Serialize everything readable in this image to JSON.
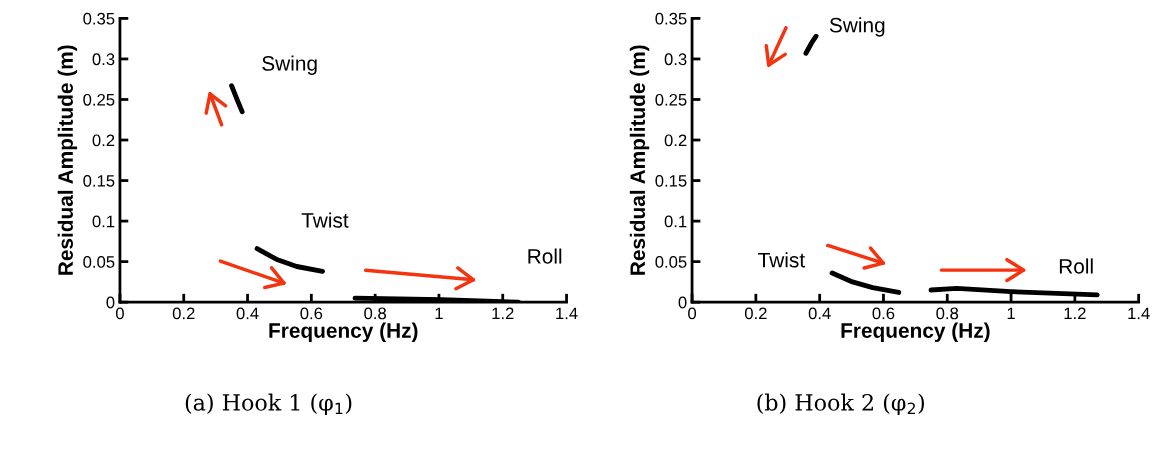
{
  "chart_data": [
    {
      "type": "line",
      "title": "(a) Hook 1 (φ$_{1}$)",
      "xlabel": "Frequency (Hz)",
      "ylabel": "Residual Amplitude (m)",
      "xlim": [
        0,
        1.4
      ],
      "xticks": [
        0,
        0.2,
        0.4,
        0.6,
        0.8,
        1,
        1.2,
        1.4
      ],
      "ylim": [
        0,
        0.35
      ],
      "yticks": [
        0,
        0.05,
        0.1,
        0.15,
        0.2,
        0.25,
        0.3,
        0.35
      ],
      "grid": false,
      "legend": false,
      "series": [
        {
          "name": "Swing",
          "color": "#000000",
          "x": [
            0.35,
            0.365,
            0.383
          ],
          "values": [
            0.267,
            0.252,
            0.235
          ]
        },
        {
          "name": "Twist",
          "color": "#000000",
          "x": [
            0.43,
            0.49,
            0.554,
            0.635
          ],
          "values": [
            0.066,
            0.053,
            0.044,
            0.038
          ]
        },
        {
          "name": "Roll",
          "color": "#000000",
          "x": [
            0.737,
            1.01,
            1.25
          ],
          "values": [
            0.005,
            0.003,
            0.0
          ]
        }
      ]
    },
    {
      "type": "line",
      "title": "(b) Hook 2 (φ$_{2}$)",
      "xlabel": "Frequency (Hz)",
      "ylabel": "Residual Amplitude (m)",
      "xlim": [
        0,
        1.4
      ],
      "xticks": [
        0,
        0.2,
        0.4,
        0.6,
        0.8,
        1,
        1.2,
        1.4
      ],
      "ylim": [
        0,
        0.35
      ],
      "yticks": [
        0,
        0.05,
        0.1,
        0.15,
        0.2,
        0.25,
        0.3,
        0.35
      ],
      "grid": false,
      "legend": false,
      "series": [
        {
          "name": "Swing",
          "color": "#000000",
          "x": [
            0.357,
            0.375,
            0.389
          ],
          "values": [
            0.307,
            0.32,
            0.328
          ]
        },
        {
          "name": "Twist",
          "color": "#000000",
          "x": [
            0.439,
            0.503,
            0.566,
            0.648
          ],
          "values": [
            0.036,
            0.025,
            0.018,
            0.012
          ]
        },
        {
          "name": "Roll",
          "color": "#000000",
          "x": [
            0.749,
            0.83,
            1.0,
            1.27
          ],
          "values": [
            0.015,
            0.017,
            0.013,
            0.009
          ]
        }
      ]
    }
  ]
}
